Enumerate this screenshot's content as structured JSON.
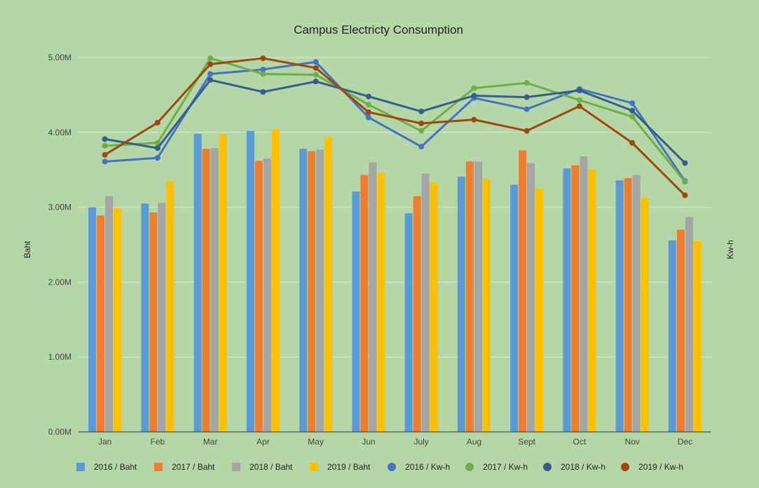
{
  "chart_data": {
    "type": "bar",
    "title": "Campus Electricty Consumption",
    "ylabel_left": "Baht",
    "ylabel_right": "Kw-h",
    "ylim": [
      0,
      5000000
    ],
    "y_ticks": [
      0,
      1000000,
      2000000,
      3000000,
      4000000,
      5000000
    ],
    "y_tick_labels": [
      "0.00M",
      "1.00M",
      "2.00M",
      "3.00M",
      "4.00M",
      "5.00M"
    ],
    "grid": true,
    "legend_position": "bottom",
    "categories": [
      "Jan",
      "Feb",
      "Mar",
      "Apr",
      "May",
      "Jun",
      "July",
      "Aug",
      "Sept",
      "Oct",
      "Nov",
      "Dec"
    ],
    "bar_series": [
      {
        "name": "2016 / Baht",
        "color": "#5b9bd5",
        "values": [
          3000000,
          3050000,
          3980000,
          4020000,
          3780000,
          3210000,
          2920000,
          3410000,
          3300000,
          3520000,
          3360000,
          2560000
        ]
      },
      {
        "name": "2017 / Baht",
        "color": "#ed7d31",
        "values": [
          2890000,
          2930000,
          3780000,
          3620000,
          3750000,
          3430000,
          3150000,
          3610000,
          3760000,
          3560000,
          3390000,
          2700000
        ]
      },
      {
        "name": "2018 / Baht",
        "color": "#a5a5a5",
        "values": [
          3150000,
          3060000,
          3790000,
          3650000,
          3770000,
          3600000,
          3450000,
          3610000,
          3590000,
          3680000,
          3430000,
          2870000
        ]
      },
      {
        "name": "2019 / Baht",
        "color": "#ffc000",
        "values": [
          2990000,
          3350000,
          3980000,
          4040000,
          3940000,
          3460000,
          3330000,
          3380000,
          3250000,
          3510000,
          3130000,
          2550000
        ]
      }
    ],
    "line_series": [
      {
        "name": "2016 / Kw-h",
        "color": "#4472c4",
        "values": [
          3610000,
          3660000,
          4780000,
          4840000,
          4940000,
          4200000,
          3810000,
          4460000,
          4310000,
          4580000,
          4390000,
          3350000
        ]
      },
      {
        "name": "2017 / Kw-h",
        "color": "#70ad47",
        "values": [
          3820000,
          3860000,
          4990000,
          4780000,
          4770000,
          4370000,
          4020000,
          4590000,
          4660000,
          4430000,
          4210000,
          3340000
        ]
      },
      {
        "name": "2018 / Kw-h",
        "color": "#355e8c",
        "values": [
          3910000,
          3790000,
          4700000,
          4540000,
          4680000,
          4480000,
          4280000,
          4490000,
          4470000,
          4560000,
          4290000,
          3590000
        ]
      },
      {
        "name": "2019 / Kw-h",
        "color": "#9e480e",
        "values": [
          3700000,
          4130000,
          4910000,
          4990000,
          4860000,
          4270000,
          4120000,
          4170000,
          4020000,
          4350000,
          3860000,
          3160000
        ]
      }
    ]
  }
}
